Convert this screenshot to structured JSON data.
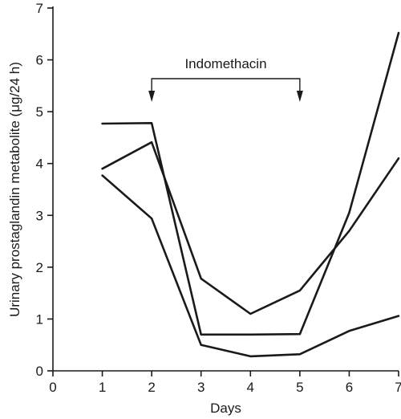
{
  "chart_data": {
    "type": "line",
    "title": "",
    "xlabel": "Days",
    "ylabel": "Urinary prostaglandin metabolite (μg/24 h)",
    "xlim": [
      0,
      7
    ],
    "ylim": [
      0,
      7
    ],
    "x_ticks": [
      0,
      1,
      2,
      3,
      4,
      5,
      6,
      7
    ],
    "y_ticks": [
      0,
      1,
      2,
      3,
      4,
      5,
      6,
      7
    ],
    "grid": false,
    "legend": "none",
    "series": [
      {
        "x": [
          1,
          2,
          3,
          4,
          5,
          6,
          7
        ],
        "y": [
          4.77,
          4.78,
          0.7,
          0.7,
          0.71,
          3.05,
          6.52
        ]
      },
      {
        "x": [
          1,
          2,
          3,
          4,
          5,
          6,
          7
        ],
        "y": [
          3.9,
          4.41,
          1.78,
          1.1,
          1.55,
          2.7,
          4.1
        ]
      },
      {
        "x": [
          1,
          2,
          3,
          4,
          5,
          6,
          7
        ],
        "y": [
          3.77,
          2.94,
          0.5,
          0.28,
          0.32,
          0.77,
          1.06
        ]
      }
    ],
    "annotations": [
      {
        "text": "Indomethacin",
        "type": "bracket",
        "x_start": 2,
        "x_end": 5
      }
    ]
  }
}
